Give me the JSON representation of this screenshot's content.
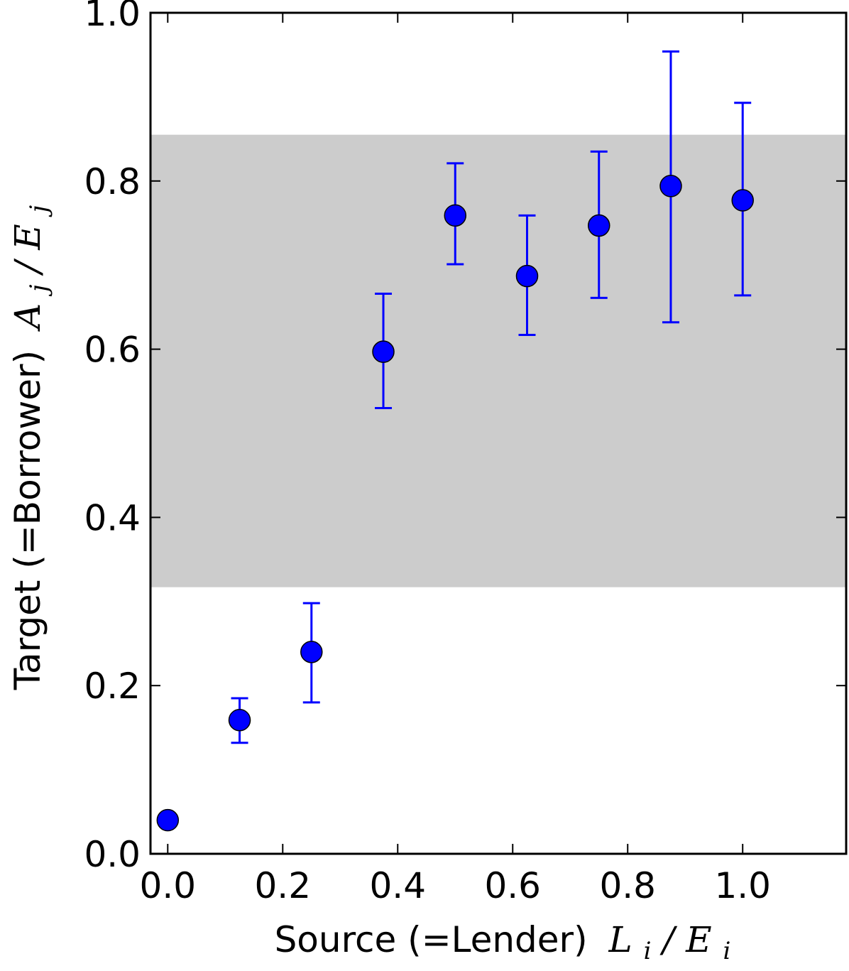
{
  "chart_data": {
    "type": "scatter",
    "xlabel": "Source (=Lender)",
    "xlabel_math": {
      "base": "L",
      "sub": "i",
      "slash": "/",
      "base2": "E",
      "sub2": "i"
    },
    "ylabel": "Target (=Borrower)",
    "ylabel_math": {
      "base": "A",
      "sub": "j",
      "slash": "/",
      "base2": "E",
      "sub2": "j"
    },
    "xlim": [
      -0.03,
      1.18
    ],
    "ylim": [
      0.0,
      1.0
    ],
    "x_ticks": [
      "0.0",
      "0.2",
      "0.4",
      "0.6",
      "0.8",
      "1.0"
    ],
    "y_ticks": [
      "0.0",
      "0.2",
      "0.4",
      "0.6",
      "0.8",
      "1.0"
    ],
    "shaded_band": {
      "y_from": 0.317,
      "y_to": 0.855,
      "color": "#cccccc"
    },
    "marker_color": "#0000ff",
    "errorbar_color": "#0000ff",
    "points": [
      {
        "x": 0.0,
        "y": 0.04,
        "err_low": null,
        "err_high": null
      },
      {
        "x": 0.125,
        "y": 0.159,
        "err_low": 0.132,
        "err_high": 0.185
      },
      {
        "x": 0.25,
        "y": 0.24,
        "err_low": 0.18,
        "err_high": 0.298
      },
      {
        "x": 0.375,
        "y": 0.597,
        "err_low": 0.53,
        "err_high": 0.666
      },
      {
        "x": 0.5,
        "y": 0.759,
        "err_low": 0.701,
        "err_high": 0.821
      },
      {
        "x": 0.625,
        "y": 0.687,
        "err_low": 0.617,
        "err_high": 0.759
      },
      {
        "x": 0.75,
        "y": 0.747,
        "err_low": 0.661,
        "err_high": 0.835
      },
      {
        "x": 0.875,
        "y": 0.794,
        "err_low": 0.632,
        "err_high": 0.954
      },
      {
        "x": 1.0,
        "y": 0.777,
        "err_low": 0.664,
        "err_high": 0.893
      }
    ]
  }
}
